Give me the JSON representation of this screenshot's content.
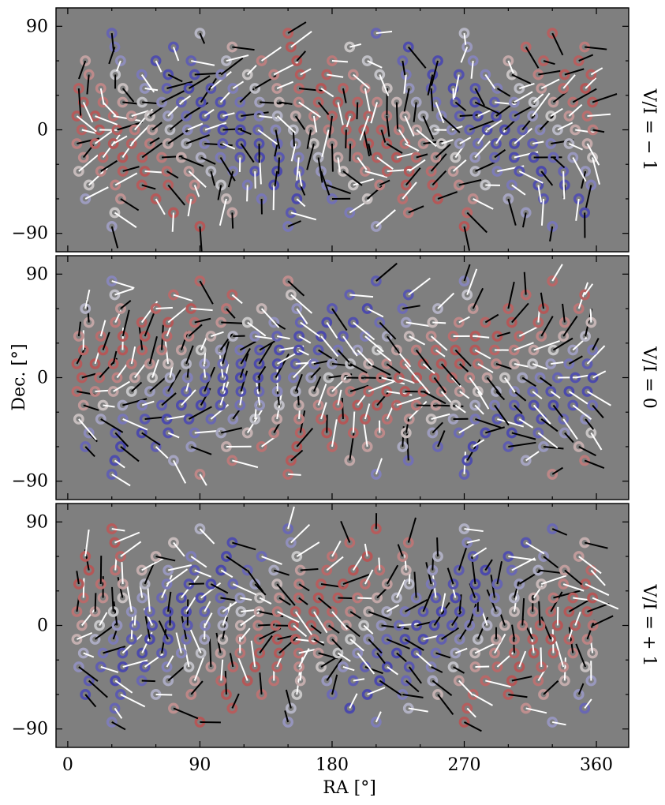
{
  "chart_data": {
    "type": "vector-field",
    "description_style": "three stacked all-sky panels",
    "shared": {
      "xlabel": "RA [°]",
      "ylabel": "Dec. [°]",
      "xlim": [
        -8,
        382
      ],
      "ylim": [
        -106,
        106
      ],
      "xticks": [
        0,
        90,
        180,
        270,
        360
      ],
      "xtick_labels": [
        "0",
        "90",
        "180",
        "270",
        "360"
      ],
      "yticks": [
        -90,
        0,
        90
      ],
      "ytick_labels": [
        "−90",
        "0",
        "90"
      ],
      "background": "#7f7f7f",
      "colors": {
        "negative": "#3d3ba8",
        "neutral": "#c8c8c8",
        "positive": "#b24a4a",
        "vector_light": "#ffffff",
        "vector_dark": "#000000"
      }
    },
    "panels": [
      {
        "label": "V/I = − 1",
        "v_over_i": -1
      },
      {
        "label": "V/I = 0",
        "v_over_i": 0
      },
      {
        "label": "V/I = + 1",
        "v_over_i": 1
      }
    ]
  }
}
